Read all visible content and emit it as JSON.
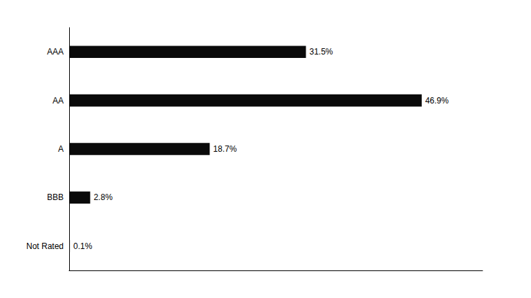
{
  "chart_data": {
    "type": "bar",
    "orientation": "horizontal",
    "categories": [
      "AAA",
      "AA",
      "A",
      "BBB",
      "Not Rated"
    ],
    "values": [
      31.5,
      46.9,
      18.7,
      2.8,
      0.1
    ],
    "value_labels": [
      "31.5%",
      "46.9%",
      "18.7%",
      "2.8%",
      "0.1%"
    ],
    "data_labels": true,
    "color": "#0a0a0a",
    "xlim": [
      0,
      55
    ],
    "tick_labels": "y",
    "grid": false
  }
}
